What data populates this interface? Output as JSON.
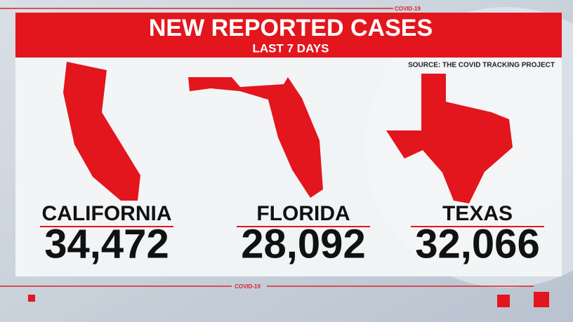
{
  "header": {
    "title": "NEW REPORTED CASES",
    "subtitle": "LAST 7 DAYS",
    "source": "SOURCE: THE COVID TRACKING PROJECT"
  },
  "tags": {
    "top": "COVID-19",
    "bottom": "COVID-19"
  },
  "states": [
    {
      "name": "CALIFORNIA",
      "cases": "34,472"
    },
    {
      "name": "FLORIDA",
      "cases": "28,092"
    },
    {
      "name": "TEXAS",
      "cases": "32,066"
    }
  ]
}
